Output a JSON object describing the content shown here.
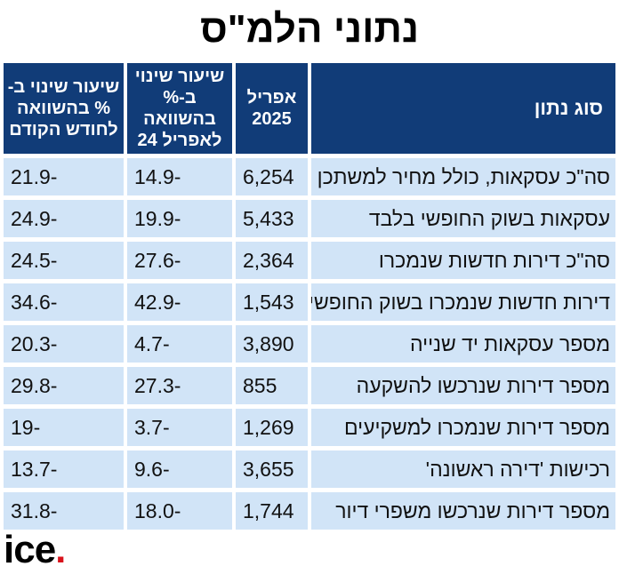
{
  "title": "נתוני הלמ\"ס",
  "headers": {
    "type": "סוג נתון",
    "april2025": "אפריל 2025",
    "yoy": "שיעור שינוי ב-% בהשוואה לאפריל 24",
    "mom": "שיעור שינוי ב-% בהשוואה לחודש הקודם"
  },
  "rows": [
    {
      "label": "סה\"כ עסקאות, כולל מחיר למשתכן",
      "april": "6,254",
      "yoy": "-14.9",
      "mom": "-21.9"
    },
    {
      "label": "עסקאות בשוק החופשי בלבד",
      "april": "5,433",
      "yoy": "-19.9",
      "mom": "-24.9"
    },
    {
      "label": "סה\"כ דירות חדשות שנמכרו",
      "april": "2,364",
      "yoy": "-27.6",
      "mom": "-24.5"
    },
    {
      "label": "דירות חדשות שנמכרו בשוק החופשי",
      "april": "1,543",
      "yoy": "-42.9",
      "mom": "-34.6"
    },
    {
      "label": "מספר עסקאות יד שנייה",
      "april": "3,890",
      "yoy": "-4.7",
      "mom": "-20.3"
    },
    {
      "label": "מספר דירות שנרכשו להשקעה",
      "april": "855",
      "yoy": "-27.3",
      "mom": "-29.8"
    },
    {
      "label": "מספר דירות שנמכרו למשקיעים",
      "april": "1,269",
      "yoy": "-3.7",
      "mom": "-19"
    },
    {
      "label": "רכישות 'דירה ראשונה'",
      "april": "3,655",
      "yoy": "-9.6",
      "mom": "-13.7"
    },
    {
      "label": "מספר דירות שנרכשו משפרי דיור",
      "april": "1,744",
      "yoy": "-18.0",
      "mom": "-31.8"
    }
  ],
  "logo": {
    "text": "ice",
    "dot": "."
  }
}
